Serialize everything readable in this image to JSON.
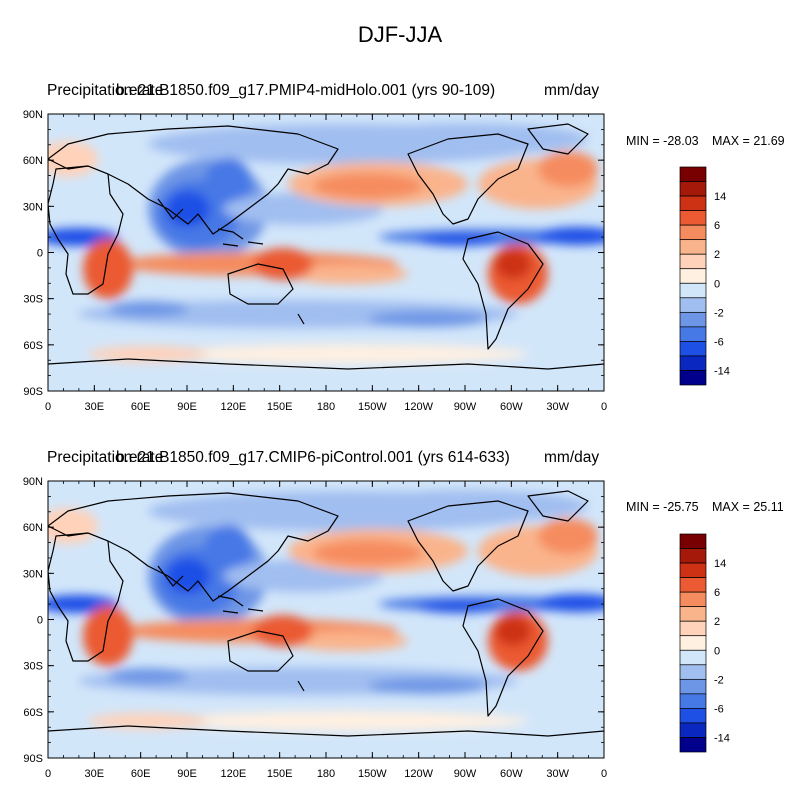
{
  "title": "DJF-JJA",
  "panels": [
    {
      "left_label": "Precipitation rate",
      "center_label": "b.e21.B1850.f09_g17.PMIP4-midHolo.001 (yrs 90-109)",
      "right_label": "mm/day",
      "min_label": "MIN = -28.03",
      "max_label": "MAX =  21.69"
    },
    {
      "left_label": "Precipitation rate",
      "center_label": "b.e21.B1850.f09_g17.CMIP6-piControl.001 (yrs 614-633)",
      "right_label": "mm/day",
      "min_label": "MIN = -25.75",
      "max_label": "MAX =  25.11"
    }
  ],
  "lat_ticks": [
    "90N",
    "60N",
    "30N",
    "0",
    "30S",
    "60S",
    "90S"
  ],
  "lon_ticks": [
    "0",
    "30E",
    "60E",
    "90E",
    "120E",
    "150E",
    "180",
    "150W",
    "120W",
    "90W",
    "60W",
    "30W",
    "0"
  ],
  "colorbar": {
    "colors": [
      "#00008c",
      "#0a28bf",
      "#1e50e6",
      "#4678e6",
      "#6e96e6",
      "#a0bef0",
      "#d2e6fa",
      "#fff0e1",
      "#ffd2b9",
      "#fab48c",
      "#f58c5f",
      "#eb5a32",
      "#cd3214",
      "#a5190a",
      "#780000"
    ],
    "tick_labels": [
      "14",
      "6",
      "2",
      "0",
      "-2",
      "-6",
      "-14"
    ]
  }
}
